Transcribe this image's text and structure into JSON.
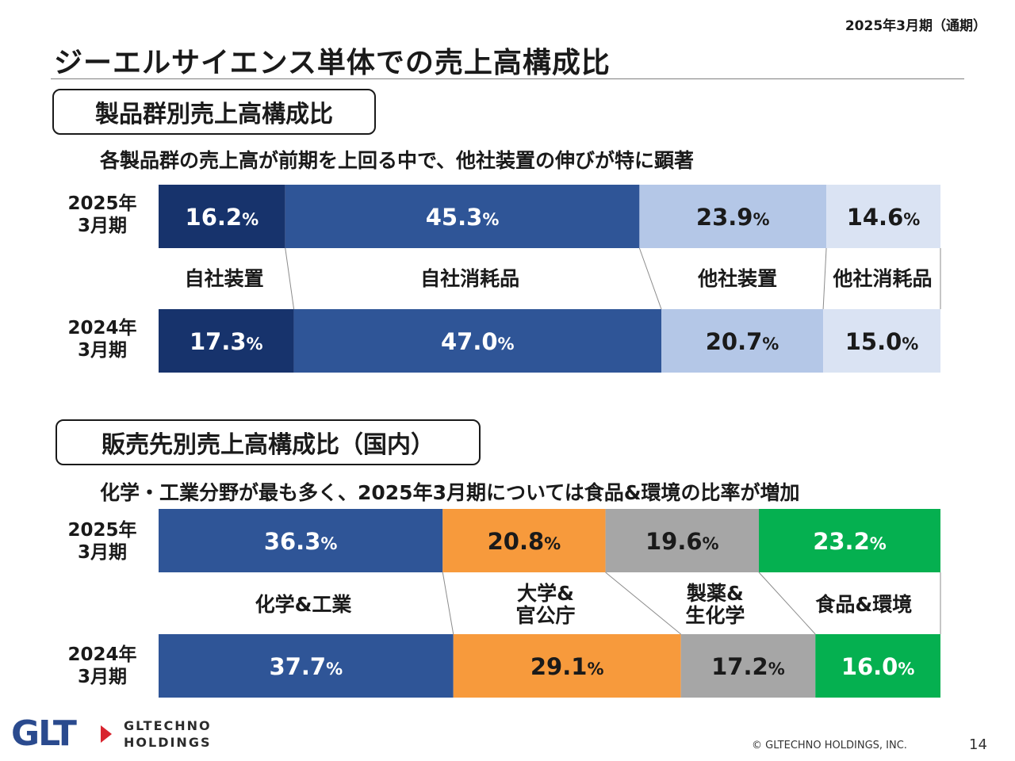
{
  "period_label": "2025年3月期（通期）",
  "title": "ジーエルサイエンス単体での売上高構成比",
  "logo": {
    "brand": "GLTECHNO HOLDINGS",
    "letters": "GLT",
    "text": "GLTECHNO\nHOLDINGS"
  },
  "footer": {
    "copyright": "© GLTECHNO HOLDINGS, INC.",
    "page": "14"
  },
  "colors": {
    "navy": "#17336c",
    "blue": "#2f5597",
    "lightblue": "#b4c7e7",
    "palest": "#dae3f3",
    "orange": "#f79a3c",
    "gray": "#a6a6a6",
    "green": "#05b050"
  },
  "chart_data": [
    {
      "type": "bar",
      "orientation": "horizontal-100%-stacked",
      "section_title": "製品群別売上高構成比",
      "subtitle": "各製品群の売上高が前期を上回る中で、他社装置の伸びが特に顕著",
      "categories": [
        "2025年\n3月期",
        "2024年\n3月期"
      ],
      "series": [
        {
          "name": "自社装置",
          "values": [
            16.2,
            17.3
          ],
          "color": "#17336c",
          "label_color": "#ffffff"
        },
        {
          "name": "自社消耗品",
          "values": [
            45.3,
            47.0
          ],
          "color": "#2f5597",
          "label_color": "#ffffff"
        },
        {
          "name": "他社装置",
          "values": [
            23.9,
            20.7
          ],
          "color": "#b4c7e7",
          "label_color": "#1a1a1a"
        },
        {
          "name": "他社消耗品",
          "values": [
            14.6,
            15.0
          ],
          "color": "#dae3f3",
          "label_color": "#1a1a1a"
        }
      ],
      "unit": "%",
      "series_lines": true
    },
    {
      "type": "bar",
      "orientation": "horizontal-100%-stacked",
      "section_title": "販売先別売上高構成比（国内）",
      "subtitle": "化学・工業分野が最も多く、2025年3月期については食品&環境の比率が増加",
      "categories": [
        "2025年\n3月期",
        "2024年\n3月期"
      ],
      "series": [
        {
          "name": "化学&工業",
          "values": [
            36.3,
            37.7
          ],
          "color": "#2f5597",
          "label_color": "#ffffff"
        },
        {
          "name": "大学&\n官公庁",
          "values": [
            20.8,
            29.1
          ],
          "color": "#f79a3c",
          "label_color": "#1a1a1a"
        },
        {
          "name": "製薬&\n生化学",
          "values": [
            19.6,
            17.2
          ],
          "color": "#a6a6a6",
          "label_color": "#1a1a1a"
        },
        {
          "name": "食品&環境",
          "values": [
            23.2,
            16.0
          ],
          "color": "#05b050",
          "label_color": "#ffffff"
        }
      ],
      "unit": "%",
      "series_lines": true
    }
  ]
}
